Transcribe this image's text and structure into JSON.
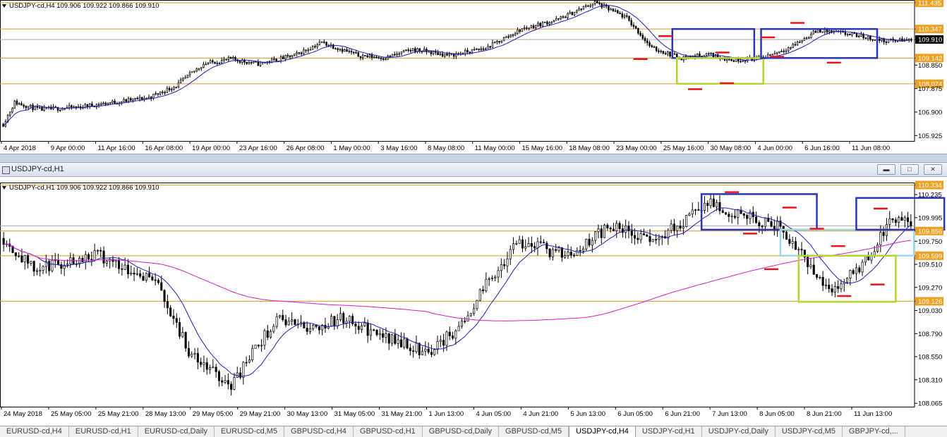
{
  "colors": {
    "bull": "#000000",
    "bear": "#000000",
    "ma_fast": "#1f1fb8",
    "ma_slow": "#d020c8",
    "level_line": "#d89a2a",
    "level_box": "#f0a020",
    "current_box": "#000000",
    "marker_red": "#e8141c",
    "box_blue": "#2b35b8",
    "box_lime": "#b5d630",
    "box_cyan": "#9ed8e6",
    "axis_text": "#000000"
  },
  "tabs": [
    {
      "label": "EURUSD-cd,H4"
    },
    {
      "label": "EURUSD-cd,H1"
    },
    {
      "label": "EURUSD-cd,Daily"
    },
    {
      "label": "EURUSD-cd,M5"
    },
    {
      "label": "GBPUSD-cd,H4"
    },
    {
      "label": "GBPUSD-cd,H1"
    },
    {
      "label": "GBPUSD-cd,Daily"
    },
    {
      "label": "GBPUSD-cd,M5"
    },
    {
      "label": "USDJPY-cd,H4",
      "active": true
    },
    {
      "label": "USDJPY-cd,H1"
    },
    {
      "label": "USDJPY-cd,Daily"
    },
    {
      "label": "USDJPY-cd,M5"
    },
    {
      "label": "GBPJPY-cd,..."
    }
  ],
  "window2": {
    "title": "USDJPY-cd,H1"
  },
  "chart_data": [
    {
      "type": "candlestick",
      "symbol_line": "USDJPY-cd,H4  109.906 109.922 109.866 109.910",
      "ylim": [
        105.7,
        111.55
      ],
      "price_ticks": [
        "111.435",
        "110.347",
        "109.910",
        "109.142",
        "108.850",
        "108.074",
        "107.875",
        "106.900",
        "105.925"
      ],
      "highlighted_levels": [
        111.435,
        110.347,
        109.142,
        108.074
      ],
      "current_price": 109.91,
      "x_labels": [
        "4 Apr 2018",
        "9 Apr 00:00",
        "11 Apr 16:00",
        "16 Apr 08:00",
        "19 Apr 00:00",
        "23 Apr 16:00",
        "26 Apr 08:00",
        "1 May 00:00",
        "3 May 16:00",
        "8 May 08:00",
        "11 May 00:00",
        "15 May 16:00",
        "18 May 08:00",
        "23 May 00:00",
        "25 May 16:00",
        "30 May 08:00",
        "4 Jun 00:00",
        "6 Jun 16:00",
        "11 Jun 08:00"
      ],
      "x_label_pos": [
        0,
        3,
        7.4,
        11.7,
        15.9,
        20.3,
        24.6,
        28.8,
        33.2,
        37.4,
        41.8,
        46.1,
        50.4,
        54.8,
        59.1,
        63.4,
        67.6,
        71.9,
        76.2
      ],
      "n_candles": 410,
      "anchors": [
        [
          0,
          106.4
        ],
        [
          6,
          107.3
        ],
        [
          20,
          107.0
        ],
        [
          40,
          107.1
        ],
        [
          60,
          107.3
        ],
        [
          80,
          107.5
        ],
        [
          95,
          108.0
        ],
        [
          110,
          108.9
        ],
        [
          125,
          109.1
        ],
        [
          140,
          108.9
        ],
        [
          160,
          109.25
        ],
        [
          175,
          109.8
        ],
        [
          195,
          109.25
        ],
        [
          210,
          109.15
        ],
        [
          225,
          109.5
        ],
        [
          245,
          109.25
        ],
        [
          265,
          109.55
        ],
        [
          285,
          110.35
        ],
        [
          305,
          110.75
        ],
        [
          325,
          111.45
        ],
        [
          342,
          110.8
        ],
        [
          356,
          109.55
        ],
        [
          372,
          109.15
        ],
        [
          388,
          109.3
        ],
        [
          400,
          109.05
        ],
        [
          416,
          109.15
        ],
        [
          432,
          109.6
        ],
        [
          448,
          110.3
        ],
        [
          468,
          110.1
        ],
        [
          484,
          109.85
        ],
        [
          500,
          109.9
        ]
      ],
      "ma_lag": 12,
      "boxes": [
        {
          "color": "box_blue",
          "x0": 0.0,
          "x1": 0.0,
          "y0": 110.347,
          "y1": 109.142,
          "from": 367,
          "to": 413
        },
        {
          "color": "box_lime",
          "x0": 0,
          "x1": 0,
          "y0": 109.142,
          "y1": 108.074,
          "from": 370,
          "to": 417
        },
        {
          "color": "box_blue",
          "x0": 0,
          "x1": 0,
          "y0": 110.347,
          "y1": 109.142,
          "from": 416,
          "to": 480
        }
      ],
      "red_markers": [
        [
          318,
          111.62
        ],
        [
          364,
          110.05
        ],
        [
          350,
          109.1
        ],
        [
          395,
          109.37
        ],
        [
          380,
          107.85
        ],
        [
          398,
          108.1
        ],
        [
          420,
          110.0
        ],
        [
          436,
          110.6
        ],
        [
          425,
          109.2
        ],
        [
          456,
          108.95
        ]
      ]
    },
    {
      "type": "candlestick",
      "symbol_line": "USDJPY-cd,H1  109.906 109.922 109.866 109.910",
      "ylim": [
        108.03,
        110.36
      ],
      "price_ticks": [
        "110.334",
        "110.235",
        "109.995",
        "109.856",
        "109.750",
        "109.599",
        "109.510",
        "109.270",
        "109.126",
        "109.030",
        "108.790",
        "108.550",
        "108.310",
        "108.065"
      ],
      "highlighted_levels": [
        110.334,
        109.856,
        109.599,
        109.126
      ],
      "current_price": 109.91,
      "x_labels": [
        "24 May 2018",
        "25 May 05:00",
        "25 May 21:00",
        "28 May 13:00",
        "29 May 05:00",
        "29 May 21:00",
        "30 May 13:00",
        "31 May 05:00",
        "31 May 21:00",
        "1 Jun 13:00",
        "4 Jun 05:00",
        "4 Jun 21:00",
        "5 Jun 13:00",
        "6 Jun 05:00",
        "6 Jun 21:00",
        "7 Jun 13:00",
        "8 Jun 05:00",
        "8 Jun 21:00",
        "11 Jun 13:00"
      ]
    }
  ]
}
